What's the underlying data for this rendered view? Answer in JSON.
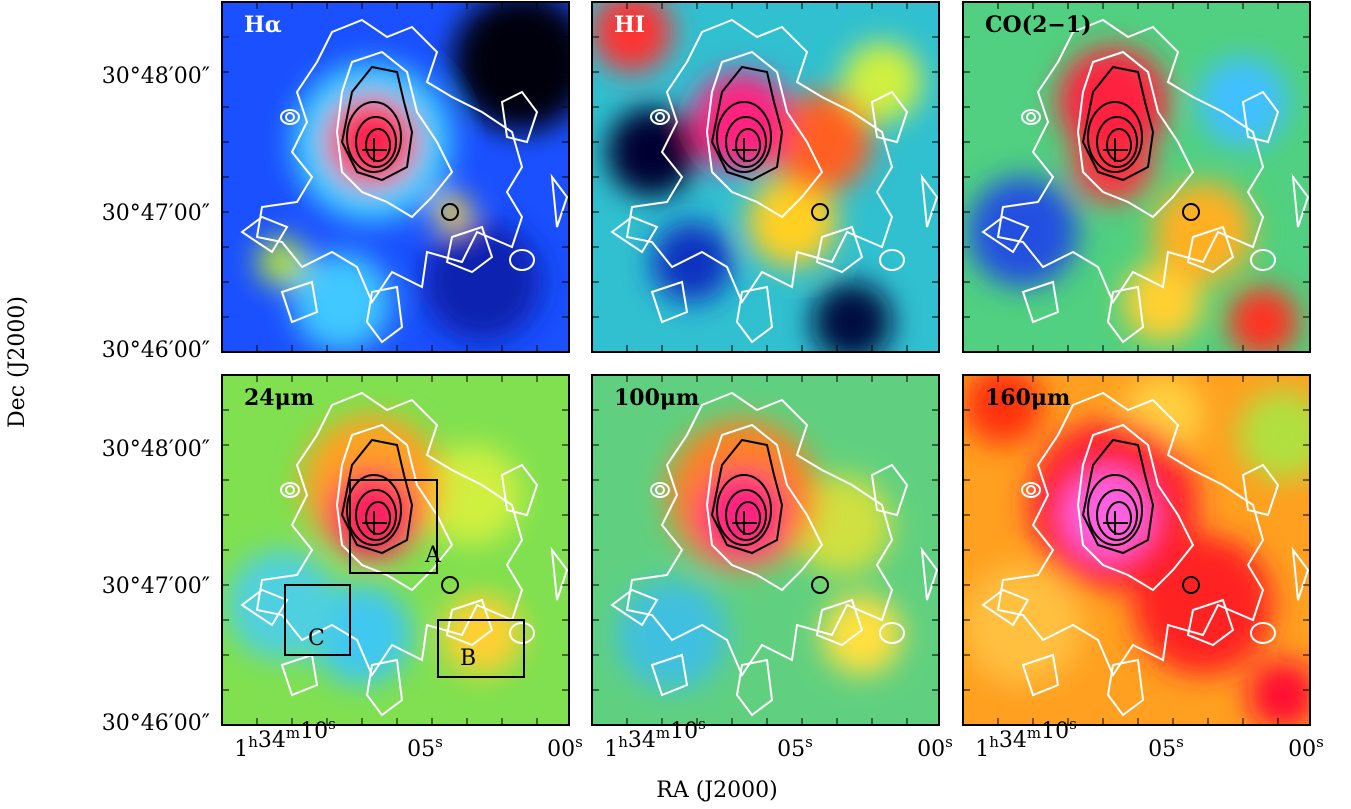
{
  "panels": [
    {
      "label": "Hα"
    },
    {
      "label": "HI"
    },
    {
      "label": "CO(2−1)"
    },
    {
      "label": "24μm"
    },
    {
      "label": "100μm"
    },
    {
      "label": "160μm"
    }
  ],
  "y_tick_labels": [
    "30°48′00″",
    "30°47′00″",
    "30°46′00″"
  ],
  "x_tick_labels": [
    "1h34m10s",
    "05s",
    "00s"
  ],
  "y_axis_label": "Dec (J2000)",
  "x_axis_label": "RA (J2000)",
  "regions": [
    {
      "label": "A"
    },
    {
      "label": "B"
    },
    {
      "label": "C"
    }
  ]
}
